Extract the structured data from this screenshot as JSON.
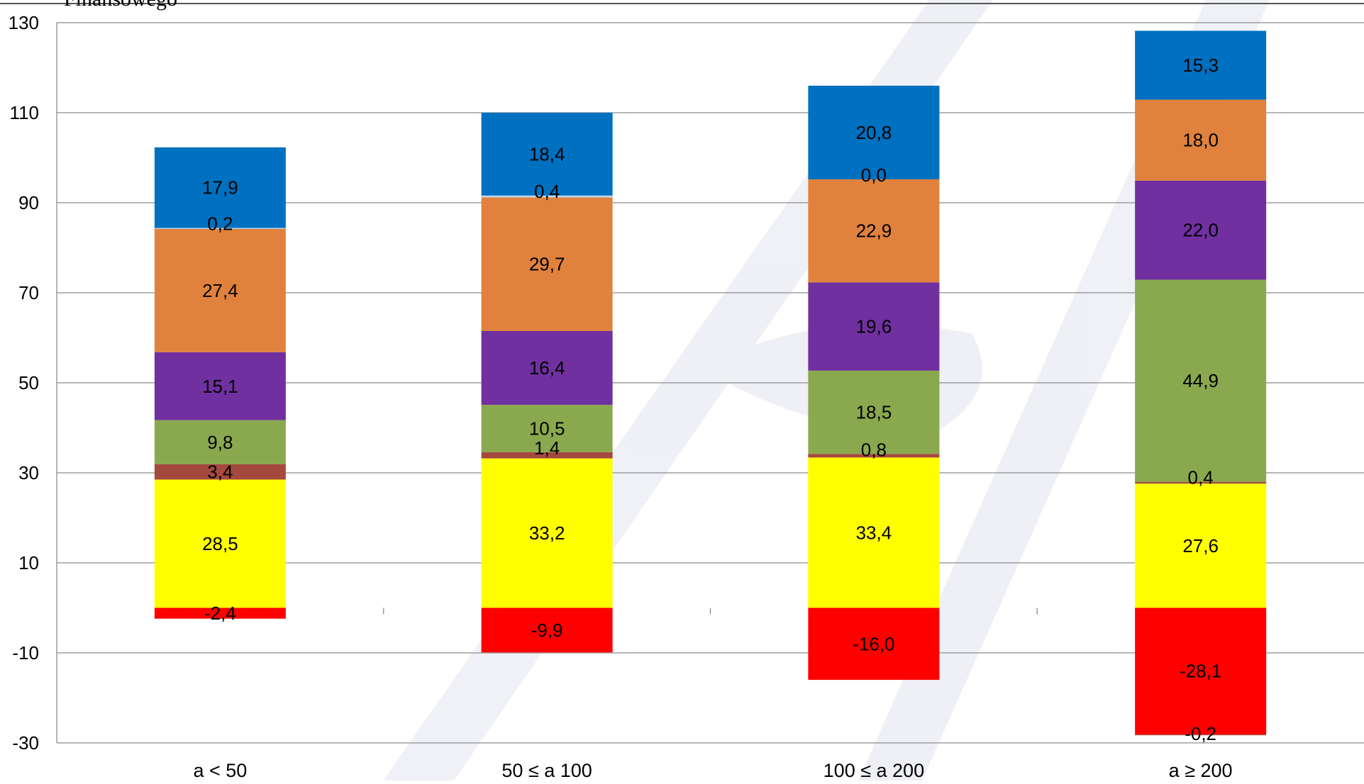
{
  "header": {
    "title_fragment": "Finansowego"
  },
  "chart_data": {
    "type": "bar",
    "stacked": true,
    "categories": [
      "a < 50",
      "50 ≤ a 100",
      "100 ≤ a 200",
      "a ≥ 200"
    ],
    "ylim": [
      -30,
      130
    ],
    "yticks": [
      130,
      110,
      90,
      70,
      50,
      30,
      10,
      -10,
      -30
    ],
    "grid": true,
    "legend": "none",
    "series": [
      {
        "color": "#FF0000",
        "values": [
          -2.4,
          -9.9,
          -16.0,
          -28.1
        ],
        "labels": [
          "-2,4",
          "-9,9",
          "-16,0",
          "-28,1"
        ]
      },
      {
        "color": "#B0413E",
        "values": [
          0,
          0,
          0,
          -0.2
        ],
        "labels": [
          null,
          null,
          null,
          "-0,2"
        ]
      },
      {
        "color": "#FFFF00",
        "values": [
          28.5,
          33.2,
          33.4,
          27.6
        ],
        "labels": [
          "28,5",
          "33,2",
          "33,4",
          "27,6"
        ]
      },
      {
        "color": "#A5493F",
        "values": [
          3.4,
          1.4,
          0.8,
          0.4
        ],
        "labels": [
          "3,4",
          "1,4",
          "0,8",
          "0,4"
        ]
      },
      {
        "color": "#8AA84E",
        "values": [
          9.8,
          10.5,
          18.5,
          44.9
        ],
        "labels": [
          "9,8",
          "10,5",
          "18,5",
          "44,9"
        ]
      },
      {
        "color": "#7030A0",
        "values": [
          15.1,
          16.4,
          19.6,
          22.0
        ],
        "labels": [
          "15,1",
          "16,4",
          "19,6",
          "22,0"
        ]
      },
      {
        "color": "#E0823D",
        "values": [
          27.4,
          29.7,
          22.9,
          18.0
        ],
        "labels": [
          "27,4",
          "29,7",
          "22,9",
          "18,0"
        ]
      },
      {
        "color": "#BDD7EE",
        "values": [
          0.2,
          0.4,
          0.0,
          0
        ],
        "labels": [
          "0,2",
          "0,4",
          "0,0",
          null
        ]
      },
      {
        "color": "#0070C0",
        "values": [
          17.9,
          18.4,
          20.8,
          15.3
        ],
        "labels": [
          "17,9",
          "18,4",
          "20,8",
          "15,3"
        ]
      }
    ]
  }
}
